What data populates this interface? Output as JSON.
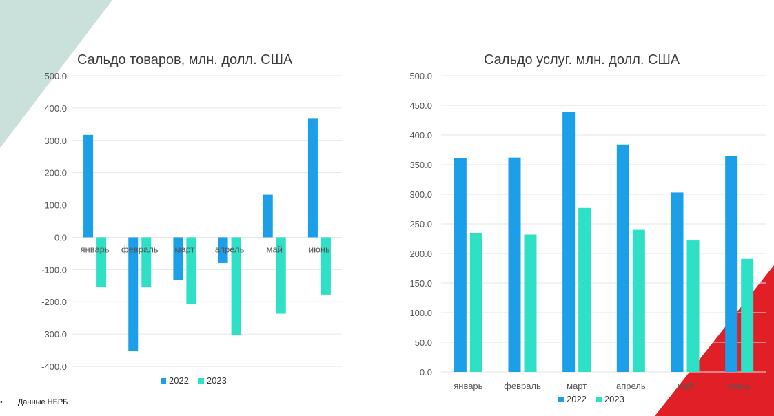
{
  "colors": {
    "series_2022": "#1a9fe8",
    "series_2023": "#2ee0c6",
    "deco_teal": "#c9e1da",
    "deco_red": "#e01f26",
    "gridline": "#e6e6e6",
    "axis_text": "#555555"
  },
  "source": {
    "bullet": "•",
    "text": "Данные НБРБ"
  },
  "chart_data": [
    {
      "type": "bar",
      "title": "Сальдо товаров, млн. долл. США",
      "categories": [
        "январь",
        "февраль",
        "март",
        "апрель",
        "май",
        "июнь"
      ],
      "series": [
        {
          "name": "2022",
          "values": [
            317,
            -353,
            -132,
            -80,
            132,
            367
          ]
        },
        {
          "name": "2023",
          "values": [
            -153,
            -155,
            -206,
            -304,
            -237,
            -178
          ]
        }
      ],
      "ylim": [
        -400,
        500
      ],
      "yticks": [
        "500.0",
        "400.0",
        "300.0",
        "200.0",
        "100.0",
        "0.0",
        "-100.0",
        "-200.0",
        "-300.0",
        "-400.0"
      ],
      "grid": true,
      "legend": "bottom",
      "category_labels_position": "at zero line"
    },
    {
      "type": "bar",
      "title": "Сальдо услуг. млн. долл. США",
      "categories": [
        "январь",
        "февраль",
        "март",
        "апрель",
        "май",
        "июнь"
      ],
      "series": [
        {
          "name": "2022",
          "values": [
            361,
            362,
            439,
            384,
            303,
            364
          ]
        },
        {
          "name": "2023",
          "values": [
            234,
            232,
            277,
            240,
            222,
            191
          ]
        }
      ],
      "ylim": [
        0,
        500
      ],
      "yticks": [
        "500.0",
        "450.0",
        "400.0",
        "350.0",
        "300.0",
        "250.0",
        "200.0",
        "150.0",
        "100.0",
        "50.0",
        "0.0"
      ],
      "grid": true,
      "legend": "bottom",
      "category_labels_position": "below axis"
    }
  ]
}
